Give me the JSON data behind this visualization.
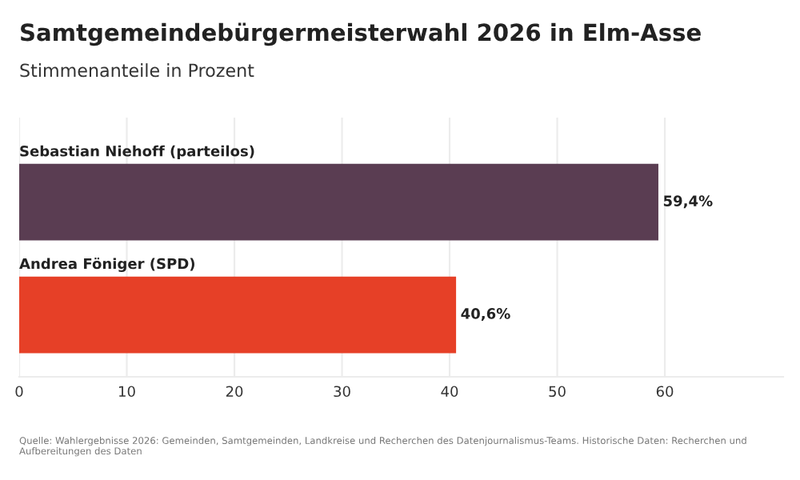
{
  "chart_data": {
    "type": "bar",
    "orientation": "horizontal",
    "title": "Samtgemeindebürgermeisterwahl 2026 in Elm-Asse",
    "subtitle": "Stimmenanteile in Prozent",
    "categories": [
      "Sebastian Niehoff (parteilos)",
      "Andrea Föniger (SPD)"
    ],
    "values": [
      59.4,
      40.6
    ],
    "colors": [
      "#5a3d52",
      "#e64027"
    ],
    "value_labels": [
      "59,4%",
      "40,6%"
    ],
    "xlim": [
      0,
      71
    ],
    "xticks": [
      0,
      10,
      20,
      30,
      40,
      50,
      60
    ],
    "grid": "x",
    "annotations": [
      "Quelle: Wahlergebnisse 2026: Gemeinden, Samtgemeinden, Landkreise und Recherchen des Datenjournalismus-Teams. Historische Daten: Recherchen und Aufbereitungen des Daten"
    ]
  }
}
